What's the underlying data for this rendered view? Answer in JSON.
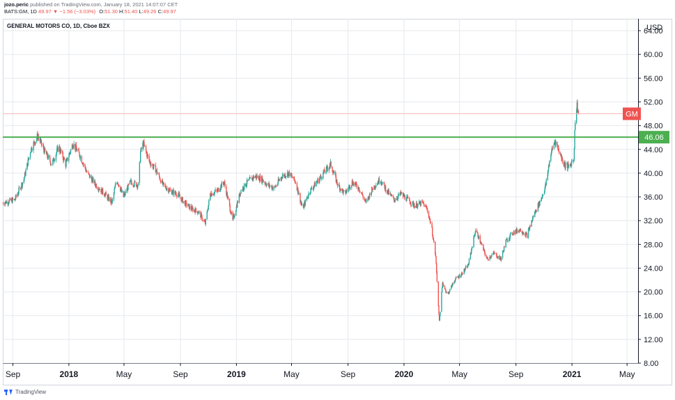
{
  "header": {
    "author": "jozo.peric",
    "published": "published on TradingView.com, January 18, 2021 14:07:07 CET",
    "symbol_line": "BATS:GM, 1D",
    "last": "49.97",
    "change_arrow": "▼",
    "change": "−1.56 (−3.03%)",
    "open_label": "O:",
    "open": "51.30",
    "high_label": "H:",
    "high": "51.40",
    "low_label": "L:",
    "low": "49.26",
    "close_label": "C:",
    "close": "49.97"
  },
  "footer": {
    "brand": "TradingView"
  },
  "chart_data": {
    "type": "candlestick",
    "title": "GENERAL MOTORS CO, 1D, Cboe BZX",
    "currency_label": "USD",
    "ylim": [
      8,
      66
    ],
    "y_ticks": [
      "64.00",
      "60.00",
      "56.00",
      "52.00",
      "48.00",
      "44.00",
      "40.00",
      "36.00",
      "32.00",
      "28.00",
      "24.00",
      "20.00",
      "16.00",
      "12.00",
      "8.00"
    ],
    "x_ticks": [
      "Sep",
      "2018",
      "May",
      "Sep",
      "2019",
      "May",
      "Sep",
      "2020",
      "May",
      "Sep",
      "2021",
      "May"
    ],
    "x_ticks_bold": [
      "2018",
      "2019",
      "2020",
      "2021"
    ],
    "x_range_dates": [
      "2017-08-10",
      "2021-05-25"
    ],
    "horizontal_levels": [
      {
        "value": 46.06,
        "label": "46.06",
        "color": "#4caf50"
      },
      {
        "value": 50.0,
        "label": "GM",
        "color": "#ef5350",
        "style": "price"
      }
    ],
    "up_color": "#26a69a",
    "down_color": "#ef5350",
    "price_path": [
      [
        "2017-08-10",
        35.0
      ],
      [
        "2017-09-05",
        35.5
      ],
      [
        "2017-09-25",
        39.0
      ],
      [
        "2017-10-10",
        44.0
      ],
      [
        "2017-10-25",
        46.3
      ],
      [
        "2017-11-10",
        43.5
      ],
      [
        "2017-11-25",
        41.5
      ],
      [
        "2017-12-10",
        44.5
      ],
      [
        "2017-12-25",
        41.5
      ],
      [
        "2018-01-10",
        45.0
      ],
      [
        "2018-01-25",
        43.0
      ],
      [
        "2018-02-10",
        40.0
      ],
      [
        "2018-03-01",
        38.0
      ],
      [
        "2018-03-20",
        36.5
      ],
      [
        "2018-04-05",
        35.0
      ],
      [
        "2018-04-15",
        39.0
      ],
      [
        "2018-04-30",
        36.0
      ],
      [
        "2018-05-15",
        38.5
      ],
      [
        "2018-06-01",
        38.0
      ],
      [
        "2018-06-06",
        43.5
      ],
      [
        "2018-06-12",
        45.0
      ],
      [
        "2018-06-25",
        42.0
      ],
      [
        "2018-07-10",
        40.5
      ],
      [
        "2018-07-25",
        38.0
      ],
      [
        "2018-08-10",
        37.0
      ],
      [
        "2018-08-25",
        36.5
      ],
      [
        "2018-09-10",
        35.0
      ],
      [
        "2018-09-25",
        34.0
      ],
      [
        "2018-10-10",
        33.5
      ],
      [
        "2018-10-25",
        31.5
      ],
      [
        "2018-11-05",
        36.5
      ],
      [
        "2018-11-20",
        37.0
      ],
      [
        "2018-12-05",
        38.5
      ],
      [
        "2018-12-24",
        32.0
      ],
      [
        "2019-01-10",
        37.0
      ],
      [
        "2019-01-25",
        38.5
      ],
      [
        "2019-02-10",
        39.5
      ],
      [
        "2019-02-25",
        39.0
      ],
      [
        "2019-03-10",
        38.0
      ],
      [
        "2019-03-25",
        37.5
      ],
      [
        "2019-04-10",
        39.5
      ],
      [
        "2019-04-25",
        40.0
      ],
      [
        "2019-05-10",
        38.5
      ],
      [
        "2019-05-25",
        34.0
      ],
      [
        "2019-06-10",
        37.0
      ],
      [
        "2019-06-25",
        38.5
      ],
      [
        "2019-07-10",
        40.0
      ],
      [
        "2019-07-25",
        41.5
      ],
      [
        "2019-08-10",
        38.0
      ],
      [
        "2019-08-25",
        36.5
      ],
      [
        "2019-09-10",
        38.5
      ],
      [
        "2019-09-25",
        37.5
      ],
      [
        "2019-10-10",
        35.0
      ],
      [
        "2019-10-25",
        37.5
      ],
      [
        "2019-11-10",
        39.0
      ],
      [
        "2019-11-25",
        37.0
      ],
      [
        "2019-12-10",
        35.5
      ],
      [
        "2019-12-25",
        36.5
      ],
      [
        "2020-01-10",
        35.5
      ],
      [
        "2020-01-25",
        34.5
      ],
      [
        "2020-02-10",
        35.0
      ],
      [
        "2020-02-20",
        34.0
      ],
      [
        "2020-03-01",
        31.0
      ],
      [
        "2020-03-10",
        26.0
      ],
      [
        "2020-03-18",
        15.0
      ],
      [
        "2020-03-25",
        21.5
      ],
      [
        "2020-04-05",
        19.5
      ],
      [
        "2020-04-20",
        22.0
      ],
      [
        "2020-05-05",
        23.0
      ],
      [
        "2020-05-20",
        24.5
      ],
      [
        "2020-06-05",
        30.5
      ],
      [
        "2020-06-15",
        28.5
      ],
      [
        "2020-06-30",
        25.5
      ],
      [
        "2020-07-15",
        26.5
      ],
      [
        "2020-07-30",
        25.5
      ],
      [
        "2020-08-10",
        28.5
      ],
      [
        "2020-08-25",
        30.0
      ],
      [
        "2020-09-10",
        30.5
      ],
      [
        "2020-09-25",
        29.5
      ],
      [
        "2020-10-10",
        33.0
      ],
      [
        "2020-10-25",
        35.5
      ],
      [
        "2020-11-05",
        38.0
      ],
      [
        "2020-11-15",
        43.0
      ],
      [
        "2020-11-25",
        45.5
      ],
      [
        "2020-12-05",
        43.5
      ],
      [
        "2020-12-15",
        41.5
      ],
      [
        "2020-12-25",
        41.0
      ],
      [
        "2021-01-05",
        42.5
      ],
      [
        "2021-01-08",
        49.0
      ],
      [
        "2021-01-12",
        51.5
      ],
      [
        "2021-01-15",
        50.0
      ]
    ]
  }
}
